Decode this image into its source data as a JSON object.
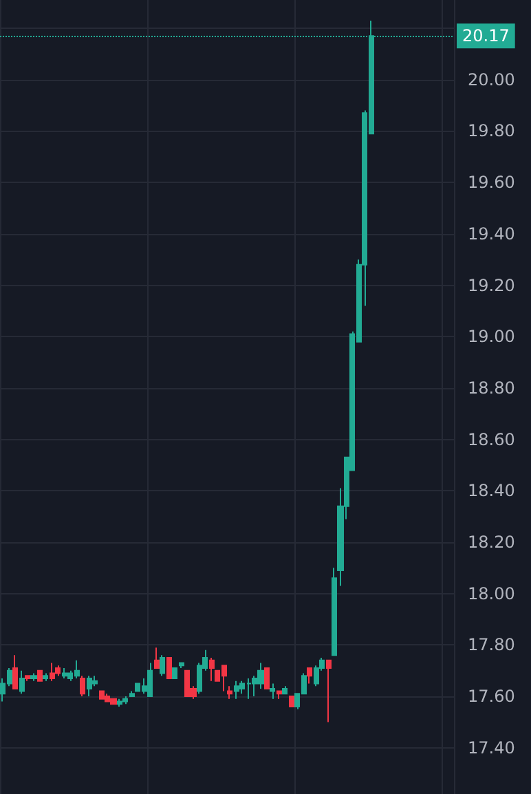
{
  "chart_data": {
    "type": "candlestick",
    "categories": [
      null,
      null,
      null,
      null,
      null,
      null,
      null,
      null,
      null,
      null,
      null,
      null,
      null,
      null,
      null,
      null,
      null,
      null,
      null,
      null,
      null,
      null,
      null,
      null,
      null,
      null,
      null,
      null,
      null,
      null,
      null,
      null,
      null,
      null,
      null,
      null,
      null,
      null,
      null,
      null,
      null,
      null,
      null,
      null,
      null,
      null,
      null,
      null,
      null,
      null,
      null,
      null,
      null,
      null,
      null,
      null,
      null,
      null,
      null,
      null,
      null,
      null,
      null,
      null,
      null,
      null,
      null,
      null,
      null,
      null,
      null,
      null,
      null,
      null
    ],
    "ohlc": [
      [
        17.61,
        17.67,
        17.58,
        17.65
      ],
      [
        17.65,
        17.71,
        17.64,
        17.7
      ],
      [
        17.71,
        17.76,
        17.63,
        17.63
      ],
      [
        17.62,
        17.7,
        17.61,
        17.67
      ],
      [
        17.68,
        17.68,
        17.66,
        17.67
      ],
      [
        17.67,
        17.69,
        17.66,
        17.68
      ],
      [
        17.7,
        17.7,
        17.66,
        17.66
      ],
      [
        17.67,
        17.69,
        17.66,
        17.68
      ],
      [
        17.69,
        17.73,
        17.66,
        17.67
      ],
      [
        17.71,
        17.72,
        17.68,
        17.69
      ],
      [
        17.68,
        17.71,
        17.67,
        17.69
      ],
      [
        17.67,
        17.7,
        17.66,
        17.69
      ],
      [
        17.68,
        17.74,
        17.67,
        17.7
      ],
      [
        17.67,
        17.68,
        17.6,
        17.61
      ],
      [
        17.63,
        17.68,
        17.6,
        17.67
      ],
      [
        17.65,
        17.68,
        17.64,
        17.66
      ],
      [
        17.62,
        17.62,
        17.59,
        17.59
      ],
      [
        17.6,
        17.61,
        17.58,
        17.58
      ],
      [
        17.59,
        17.59,
        17.57,
        17.57
      ],
      [
        17.57,
        17.59,
        17.56,
        17.58
      ],
      [
        17.58,
        17.6,
        17.57,
        17.59
      ],
      [
        17.6,
        17.62,
        17.6,
        17.61
      ],
      [
        17.62,
        17.65,
        17.62,
        17.65
      ],
      [
        17.62,
        17.67,
        17.61,
        17.64
      ],
      [
        17.6,
        17.73,
        17.6,
        17.7
      ],
      [
        17.74,
        17.79,
        17.71,
        17.71
      ],
      [
        17.69,
        17.76,
        17.68,
        17.75
      ],
      [
        17.75,
        17.75,
        17.67,
        17.67
      ],
      [
        17.67,
        17.71,
        17.67,
        17.71
      ],
      [
        17.72,
        17.73,
        17.71,
        17.73
      ],
      [
        17.7,
        17.7,
        17.6,
        17.6
      ],
      [
        17.63,
        17.64,
        17.59,
        17.6
      ],
      [
        17.62,
        17.73,
        17.61,
        17.72
      ],
      [
        17.71,
        17.78,
        17.7,
        17.75
      ],
      [
        17.74,
        17.75,
        17.66,
        17.71
      ],
      [
        17.7,
        17.7,
        17.66,
        17.66
      ],
      [
        17.72,
        17.72,
        17.62,
        17.68
      ],
      [
        17.62,
        17.64,
        17.59,
        17.61
      ],
      [
        17.62,
        17.66,
        17.59,
        17.64
      ],
      [
        17.63,
        17.66,
        17.61,
        17.65
      ],
      [
        17.65,
        17.67,
        17.59,
        17.65
      ],
      [
        17.65,
        17.68,
        17.6,
        17.67
      ],
      [
        17.65,
        17.73,
        17.63,
        17.7
      ],
      [
        17.71,
        17.71,
        17.63,
        17.63
      ],
      [
        17.62,
        17.65,
        17.59,
        17.63
      ],
      [
        17.62,
        17.62,
        17.59,
        17.61
      ],
      [
        17.61,
        17.64,
        17.61,
        17.63
      ],
      [
        17.6,
        17.6,
        17.56,
        17.56
      ],
      [
        17.56,
        17.61,
        17.55,
        17.61
      ],
      [
        17.61,
        17.69,
        17.61,
        17.68
      ],
      [
        17.71,
        17.71,
        17.65,
        17.68
      ],
      [
        17.65,
        17.72,
        17.64,
        17.71
      ],
      [
        17.71,
        17.75,
        17.7,
        17.74
      ],
      [
        17.74,
        17.74,
        17.5,
        17.71
      ],
      [
        17.76,
        18.1,
        17.76,
        18.06
      ],
      [
        18.09,
        18.41,
        18.03,
        18.34
      ],
      [
        18.34,
        18.53,
        18.29,
        18.53
      ],
      [
        18.48,
        19.02,
        18.48,
        19.01
      ],
      [
        18.98,
        19.3,
        18.98,
        19.28
      ],
      [
        19.28,
        19.88,
        19.12,
        19.87
      ],
      [
        19.79,
        20.23,
        19.79,
        20.17
      ],
      null,
      null,
      null,
      null,
      null,
      null,
      null,
      null,
      null,
      null,
      null,
      null,
      null
    ],
    "ylim": [
      17.22,
      20.31
    ],
    "yticks": [
      {
        "value": 17.4,
        "label": "17.40"
      },
      {
        "value": 17.6,
        "label": "17.60"
      },
      {
        "value": 17.8,
        "label": "17.80"
      },
      {
        "value": 18,
        "label": "18.00"
      },
      {
        "value": 18.2,
        "label": "18.20"
      },
      {
        "value": 18.4,
        "label": "18.40"
      },
      {
        "value": 18.6,
        "label": "18.60"
      },
      {
        "value": 18.8,
        "label": "18.80"
      },
      {
        "value": 19,
        "label": "19.00"
      },
      {
        "value": 19.2,
        "label": "19.20"
      },
      {
        "value": 19.4,
        "label": "19.40"
      },
      {
        "value": 19.6,
        "label": "19.60"
      },
      {
        "value": 19.8,
        "label": "19.80"
      },
      {
        "value": 20,
        "label": "20.00"
      },
      {
        "value": 20.2,
        "label": null
      }
    ],
    "ref_lines": [
      {
        "axis": "y",
        "value": 20.17,
        "label": "20.17",
        "color": "#22ab94",
        "line_style": "dotted"
      }
    ],
    "grid": true
  }
}
